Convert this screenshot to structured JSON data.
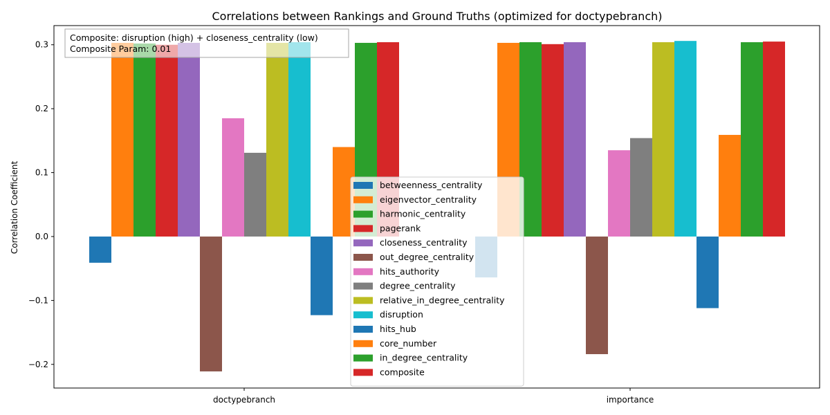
{
  "chart_data": {
    "type": "bar",
    "title": "Correlations between Rankings and Ground Truths (optimized for doctypebranch)",
    "xlabel": "",
    "ylabel": "Correlation Coefficient",
    "categories": [
      "doctypebranch",
      "importance"
    ],
    "ylim": [
      -0.237,
      0.33
    ],
    "yticks": [
      -0.2,
      -0.1,
      0.0,
      0.1,
      0.2,
      0.3
    ],
    "ytick_labels": [
      "−0.2",
      "−0.1",
      "0.0",
      "0.1",
      "0.2",
      "0.3"
    ],
    "grid": false,
    "legend_position": "lower center",
    "series": [
      {
        "name": "betweenness_centrality",
        "color": "#1f77b4",
        "values": [
          -0.041,
          -0.064
        ]
      },
      {
        "name": "eigenvector_centrality",
        "color": "#ff7f0e",
        "values": [
          0.303,
          0.303
        ]
      },
      {
        "name": "harmonic_centrality",
        "color": "#2ca02c",
        "values": [
          0.302,
          0.304
        ]
      },
      {
        "name": "pagerank",
        "color": "#d62728",
        "values": [
          0.3,
          0.301
        ]
      },
      {
        "name": "closeness_centrality",
        "color": "#9467bd",
        "values": [
          0.303,
          0.304
        ]
      },
      {
        "name": "out_degree_centrality",
        "color": "#8c564b",
        "values": [
          -0.211,
          -0.184
        ]
      },
      {
        "name": "hits_authority",
        "color": "#e377c2",
        "values": [
          0.185,
          0.135
        ]
      },
      {
        "name": "degree_centrality",
        "color": "#7f7f7f",
        "values": [
          0.131,
          0.154
        ]
      },
      {
        "name": "relative_in_degree_centrality",
        "color": "#bcbd22",
        "values": [
          0.303,
          0.304
        ]
      },
      {
        "name": "disruption",
        "color": "#17becf",
        "values": [
          0.304,
          0.306
        ]
      },
      {
        "name": "hits_hub",
        "color": "#1f77b4",
        "values": [
          -0.123,
          -0.112
        ]
      },
      {
        "name": "core_number",
        "color": "#ff7f0e",
        "values": [
          0.14,
          0.159
        ]
      },
      {
        "name": "in_degree_centrality",
        "color": "#2ca02c",
        "values": [
          0.303,
          0.304
        ]
      },
      {
        "name": "composite",
        "color": "#d62728",
        "values": [
          0.304,
          0.305
        ]
      }
    ],
    "annotation": {
      "line1": "Composite: disruption (high) + closeness_centrality (low)",
      "line2": "Composite Param: 0.01"
    }
  }
}
